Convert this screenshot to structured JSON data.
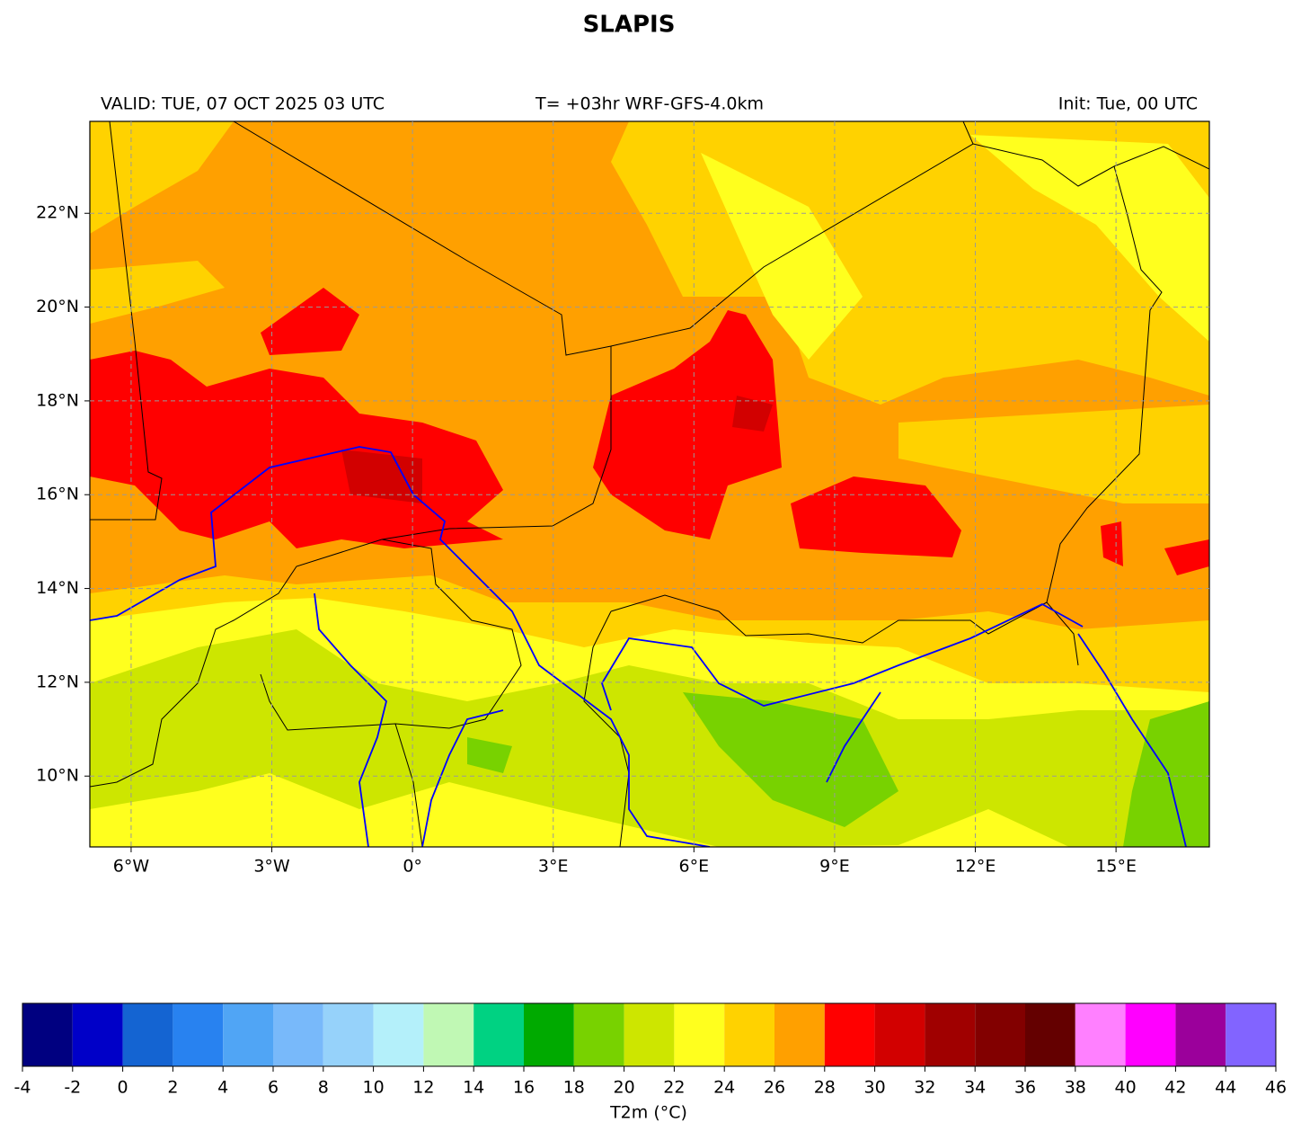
{
  "chart_data": {
    "type": "map",
    "title": "SLAPIS",
    "header_left": "VALID: TUE, 07 OCT 2025 03 UTC",
    "header_center": "T= +03hr WRF-GFS-4.0km",
    "header_right": "Init: Tue, 00 UTC",
    "xlim": [
      -6.88,
      16.99
    ],
    "ylim": [
      8.49,
      23.96
    ],
    "xticks": [
      {
        "value": -6,
        "label": "6°W"
      },
      {
        "value": -3,
        "label": "3°W"
      },
      {
        "value": 0,
        "label": "0°"
      },
      {
        "value": 3,
        "label": "3°E"
      },
      {
        "value": 6,
        "label": "6°E"
      },
      {
        "value": 9,
        "label": "9°E"
      },
      {
        "value": 12,
        "label": "12°E"
      },
      {
        "value": 15,
        "label": "15°E"
      }
    ],
    "yticks": [
      {
        "value": 10,
        "label": "10°N"
      },
      {
        "value": 12,
        "label": "12°N"
      },
      {
        "value": 14,
        "label": "14°N"
      },
      {
        "value": 16,
        "label": "16°N"
      },
      {
        "value": 18,
        "label": "18°N"
      },
      {
        "value": 20,
        "label": "20°N"
      },
      {
        "value": 22,
        "label": "22°N"
      }
    ],
    "grid": true,
    "colorbar": {
      "label": "T2m (°C)",
      "bounds": [
        -4,
        -2,
        0,
        2,
        4,
        6,
        8,
        10,
        12,
        14,
        16,
        18,
        20,
        22,
        24,
        26,
        28,
        30,
        32,
        34,
        36,
        38,
        40,
        42,
        44,
        46
      ],
      "colors": [
        "#000080",
        "#0000c8",
        "#1464d2",
        "#2882f0",
        "#50a5f5",
        "#78b9fa",
        "#96d2fa",
        "#b4f0fa",
        "#c0f8b4",
        "#00d282",
        "#00aa00",
        "#78d200",
        "#cde600",
        "#ffff1e",
        "#ffd200",
        "#ffa000",
        "#ff0000",
        "#d20000",
        "#a00000",
        "#820000",
        "#640000",
        "#ff80ff",
        "#ff00ff",
        "#9b009b",
        "#8264ff"
      ]
    }
  }
}
